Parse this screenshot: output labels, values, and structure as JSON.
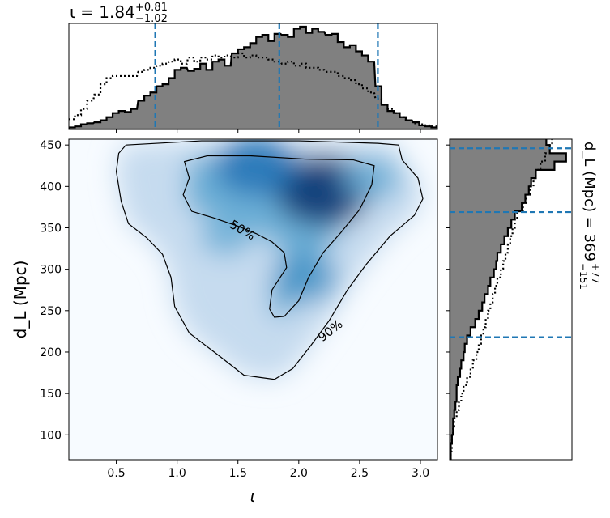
{
  "chart_data": [
    {
      "type": "heatmap",
      "panel": "joint",
      "xlabel": "ι",
      "ylabel": "d_L (Mpc)",
      "xlim": [
        0.11,
        3.14
      ],
      "ylim": [
        70,
        457
      ],
      "xticks": [
        0.5,
        1.0,
        1.5,
        2.0,
        2.5,
        3.0
      ],
      "xtick_labels": [
        "0.5",
        "1.0",
        "1.5",
        "2.0",
        "2.5",
        "3.0"
      ],
      "yticks": [
        100,
        150,
        200,
        250,
        300,
        350,
        400,
        450
      ],
      "ytick_labels": [
        "100",
        "150",
        "200",
        "250",
        "300",
        "350",
        "400",
        "450"
      ],
      "colormap": "Blues",
      "density_peaks": [
        {
          "x": 2.2,
          "y": 395,
          "weight": 1.0
        },
        {
          "x": 1.65,
          "y": 425,
          "weight": 0.8
        },
        {
          "x": 2.05,
          "y": 290,
          "weight": 0.55
        },
        {
          "x": 1.4,
          "y": 340,
          "weight": 0.35
        },
        {
          "x": 2.6,
          "y": 410,
          "weight": 0.45
        }
      ],
      "contours": [
        {
          "label": "50%",
          "points": [
            [
              1.06,
              430
            ],
            [
              1.25,
              437
            ],
            [
              1.6,
              437
            ],
            [
              2.05,
              433
            ],
            [
              2.45,
              432
            ],
            [
              2.62,
              425
            ],
            [
              2.6,
              402
            ],
            [
              2.5,
              372
            ],
            [
              2.35,
              345
            ],
            [
              2.2,
              320
            ],
            [
              2.08,
              290
            ],
            [
              2.0,
              262
            ],
            [
              1.88,
              243
            ],
            [
              1.8,
              242
            ],
            [
              1.76,
              252
            ],
            [
              1.78,
              275
            ],
            [
              1.9,
              302
            ],
            [
              1.88,
              320
            ],
            [
              1.78,
              333
            ],
            [
              1.65,
              343
            ],
            [
              1.5,
              352
            ],
            [
              1.3,
              362
            ],
            [
              1.12,
              370
            ],
            [
              1.05,
              390
            ],
            [
              1.1,
              410
            ],
            [
              1.06,
              430
            ]
          ]
        },
        {
          "label": "90%",
          "points": [
            [
              0.58,
              450
            ],
            [
              1.2,
              455
            ],
            [
              2.0,
              455
            ],
            [
              2.65,
              452
            ],
            [
              2.82,
              450
            ],
            [
              2.85,
              432
            ],
            [
              2.98,
              410
            ],
            [
              3.02,
              385
            ],
            [
              2.95,
              365
            ],
            [
              2.75,
              340
            ],
            [
              2.55,
              305
            ],
            [
              2.4,
              275
            ],
            [
              2.25,
              238
            ],
            [
              2.1,
              208
            ],
            [
              1.95,
              180
            ],
            [
              1.8,
              167
            ],
            [
              1.55,
              172
            ],
            [
              1.35,
              195
            ],
            [
              1.1,
              223
            ],
            [
              0.98,
              255
            ],
            [
              0.95,
              290
            ],
            [
              0.88,
              318
            ],
            [
              0.75,
              338
            ],
            [
              0.6,
              355
            ],
            [
              0.54,
              382
            ],
            [
              0.5,
              418
            ],
            [
              0.52,
              440
            ],
            [
              0.58,
              450
            ]
          ]
        }
      ]
    },
    {
      "type": "bar",
      "panel": "top-marginal",
      "title": "ι = 1.84",
      "title_sup": "+0.81",
      "title_sub": "−1.02",
      "x": [
        0.11,
        0.16,
        0.21,
        0.26,
        0.32,
        0.37,
        0.42,
        0.47,
        0.52,
        0.57,
        0.62,
        0.68,
        0.73,
        0.78,
        0.83,
        0.88,
        0.93,
        0.98,
        1.03,
        1.09,
        1.14,
        1.19,
        1.24,
        1.29,
        1.34,
        1.39,
        1.45,
        1.5,
        1.55,
        1.6,
        1.65,
        1.7,
        1.75,
        1.8,
        1.86,
        1.91,
        1.96,
        2.01,
        2.06,
        2.11,
        2.16,
        2.22,
        2.27,
        2.32,
        2.37,
        2.42,
        2.47,
        2.52,
        2.57,
        2.63,
        2.68,
        2.73,
        2.78,
        2.83,
        2.88,
        2.94,
        2.99,
        3.04,
        3.09
      ],
      "values": [
        0.02,
        0.03,
        0.05,
        0.06,
        0.07,
        0.09,
        0.12,
        0.16,
        0.18,
        0.17,
        0.2,
        0.28,
        0.33,
        0.36,
        0.42,
        0.44,
        0.5,
        0.58,
        0.6,
        0.57,
        0.59,
        0.64,
        0.58,
        0.66,
        0.68,
        0.62,
        0.74,
        0.78,
        0.8,
        0.84,
        0.9,
        0.92,
        0.86,
        0.93,
        0.92,
        0.9,
        0.98,
        1.0,
        0.94,
        0.98,
        0.95,
        0.92,
        0.93,
        0.85,
        0.8,
        0.82,
        0.76,
        0.72,
        0.66,
        0.42,
        0.24,
        0.18,
        0.16,
        0.12,
        0.09,
        0.07,
        0.04,
        0.03,
        0.02
      ],
      "prior_values": [
        0.1,
        0.14,
        0.2,
        0.28,
        0.34,
        0.44,
        0.5,
        0.52,
        0.52,
        0.52,
        0.52,
        0.56,
        0.58,
        0.6,
        0.62,
        0.64,
        0.66,
        0.68,
        0.64,
        0.7,
        0.66,
        0.7,
        0.68,
        0.72,
        0.7,
        0.72,
        0.7,
        0.74,
        0.7,
        0.72,
        0.7,
        0.7,
        0.68,
        0.66,
        0.64,
        0.66,
        0.62,
        0.64,
        0.6,
        0.6,
        0.58,
        0.56,
        0.56,
        0.52,
        0.5,
        0.48,
        0.44,
        0.4,
        0.36,
        0.3,
        0.24,
        0.2,
        0.16,
        0.12,
        0.09,
        0.06,
        0.05,
        0.04,
        0.03
      ],
      "quantiles": [
        0.82,
        1.84,
        2.65
      ],
      "ylim": [
        0,
        1.0
      ]
    },
    {
      "type": "bar",
      "panel": "right-marginal",
      "orientation": "horizontal",
      "label": "d_L (Mpc) = 369",
      "label_sup": "+77",
      "label_sub": "−151",
      "y": [
        70,
        80,
        90,
        100,
        110,
        120,
        130,
        140,
        150,
        160,
        170,
        180,
        190,
        200,
        210,
        220,
        230,
        240,
        250,
        260,
        270,
        280,
        290,
        300,
        310,
        320,
        330,
        340,
        350,
        360,
        370,
        380,
        390,
        400,
        410,
        420,
        430,
        440,
        450
      ],
      "values": [
        0.01,
        0.01,
        0.02,
        0.03,
        0.03,
        0.04,
        0.05,
        0.06,
        0.06,
        0.07,
        0.09,
        0.1,
        0.12,
        0.13,
        0.15,
        0.18,
        0.22,
        0.25,
        0.28,
        0.3,
        0.33,
        0.35,
        0.38,
        0.4,
        0.41,
        0.44,
        0.47,
        0.5,
        0.53,
        0.56,
        0.62,
        0.65,
        0.68,
        0.7,
        0.74,
        0.9,
        1.0,
        0.86,
        0.83
      ],
      "prior_values": [
        0.01,
        0.02,
        0.02,
        0.03,
        0.04,
        0.06,
        0.08,
        0.1,
        0.12,
        0.15,
        0.18,
        0.2,
        0.23,
        0.25,
        0.27,
        0.29,
        0.31,
        0.33,
        0.35,
        0.37,
        0.39,
        0.41,
        0.44,
        0.46,
        0.48,
        0.5,
        0.52,
        0.54,
        0.56,
        0.58,
        0.63,
        0.66,
        0.69,
        0.72,
        0.74,
        0.78,
        0.82,
        0.86,
        0.88
      ],
      "quantiles": [
        218,
        369,
        446
      ],
      "xlim": [
        0,
        1.05
      ]
    }
  ],
  "colors": {
    "hist_fill": "#808080",
    "quantile_line": "#1f77b4",
    "contour": "#000000"
  }
}
